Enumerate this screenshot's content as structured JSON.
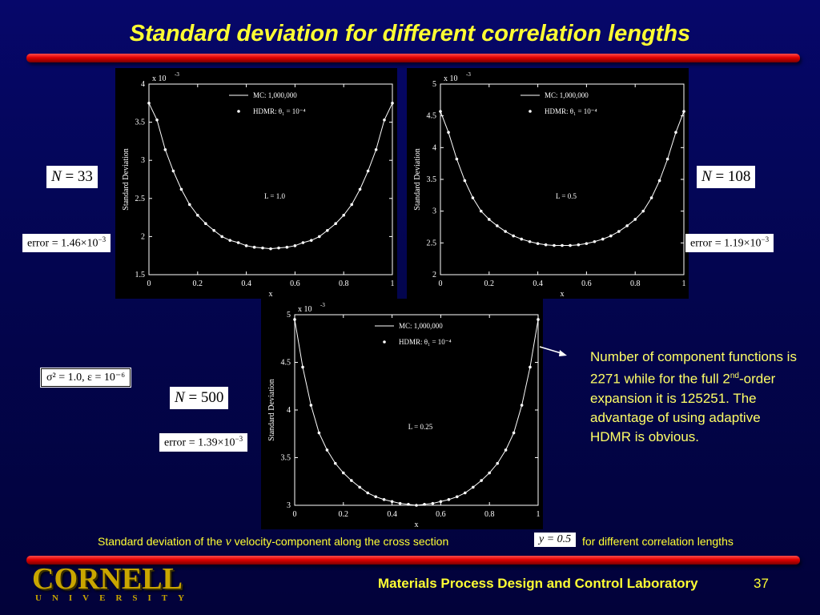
{
  "title": "Standard deviation for different correlation lengths",
  "colors": {
    "title": "#ffff33",
    "bar": "#e00000",
    "text": "#ffff66"
  },
  "left_info": {
    "n": "33",
    "error_mantissa": "1.46",
    "error_exp": "−3"
  },
  "right_info": {
    "n": "108",
    "error_mantissa": "1.19",
    "error_exp": "−3"
  },
  "center_info": {
    "n": "500",
    "error_mantissa": "1.39",
    "error_exp": "−3",
    "params": "σ² = 1.0, ε = 10⁻⁶"
  },
  "sidenote": {
    "line1": "Number of component functions is 2271 while for the full  2",
    "sup": "nd",
    "line2": "-order expansion it is 125251. The advantage of using adaptive HDMR is obvious."
  },
  "caption": {
    "part1": "Standard deviation of the",
    "v": "v",
    "part2": "velocity-component along the cross section",
    "eq": "y = 0.5",
    "part3": "for different correlation lengths"
  },
  "logo": {
    "main": "CORNELL",
    "sub": "UNIVERSITY"
  },
  "footer": {
    "lab": "Materials Process Design and Control Laboratory",
    "page": "37"
  },
  "chart_data": [
    {
      "type": "line",
      "annotation": "L = 1.0",
      "xlabel": "x",
      "ylabel": "Standard Deviation",
      "multiplier": "x 10",
      "multiplier_exp": "-3",
      "xlim": [
        0,
        1
      ],
      "ylim": [
        1.5,
        4
      ],
      "xticks": [
        "0",
        "0.2",
        "0.4",
        "0.6",
        "0.8",
        "1"
      ],
      "yticks": [
        "1.5",
        "2",
        "2.5",
        "3",
        "3.5",
        "4"
      ],
      "legend": [
        "MC: 1,000,000",
        "HDMR: θ₁ = 10⁻⁴"
      ],
      "x": [
        0,
        0.033,
        0.067,
        0.1,
        0.133,
        0.167,
        0.2,
        0.233,
        0.267,
        0.3,
        0.333,
        0.367,
        0.4,
        0.433,
        0.467,
        0.5,
        0.533,
        0.567,
        0.6,
        0.633,
        0.667,
        0.7,
        0.733,
        0.767,
        0.8,
        0.833,
        0.867,
        0.9,
        0.933,
        0.967,
        1
      ],
      "series": [
        {
          "name": "MC: 1,000,000",
          "values": [
            3.75,
            3.53,
            3.14,
            2.86,
            2.62,
            2.42,
            2.28,
            2.17,
            2.08,
            2.0,
            1.95,
            1.92,
            1.88,
            1.86,
            1.85,
            1.84,
            1.85,
            1.86,
            1.88,
            1.92,
            1.95,
            2.0,
            2.08,
            2.17,
            2.28,
            2.42,
            2.62,
            2.86,
            3.14,
            3.53,
            3.75
          ]
        },
        {
          "name": "HDMR: θ₁ = 10⁻⁴",
          "values": [
            3.75,
            3.53,
            3.14,
            2.86,
            2.62,
            2.42,
            2.28,
            2.17,
            2.08,
            2.0,
            1.95,
            1.92,
            1.88,
            1.86,
            1.85,
            1.84,
            1.85,
            1.86,
            1.88,
            1.92,
            1.95,
            2.0,
            2.08,
            2.17,
            2.28,
            2.42,
            2.62,
            2.86,
            3.14,
            3.53,
            3.75
          ]
        }
      ]
    },
    {
      "type": "line",
      "annotation": "L = 0.5",
      "xlabel": "x",
      "ylabel": "Standard Deviation",
      "multiplier": "x 10",
      "multiplier_exp": "-3",
      "xlim": [
        0,
        1
      ],
      "ylim": [
        2,
        5
      ],
      "xticks": [
        "0",
        "0.2",
        "0.4",
        "0.6",
        "0.8",
        "1"
      ],
      "yticks": [
        "2",
        "2.5",
        "3",
        "3.5",
        "4",
        "4.5",
        "5"
      ],
      "legend": [
        "MC: 1,000,000",
        "HDMR: θ₁ = 10⁻⁴"
      ],
      "x": [
        0,
        0.033,
        0.067,
        0.1,
        0.133,
        0.167,
        0.2,
        0.233,
        0.267,
        0.3,
        0.333,
        0.367,
        0.4,
        0.433,
        0.467,
        0.5,
        0.533,
        0.567,
        0.6,
        0.633,
        0.667,
        0.7,
        0.733,
        0.767,
        0.8,
        0.833,
        0.867,
        0.9,
        0.933,
        0.967,
        1
      ],
      "series": [
        {
          "name": "MC: 1,000,000",
          "values": [
            4.57,
            4.24,
            3.82,
            3.48,
            3.21,
            3.0,
            2.87,
            2.77,
            2.68,
            2.61,
            2.56,
            2.52,
            2.49,
            2.47,
            2.46,
            2.46,
            2.46,
            2.47,
            2.49,
            2.52,
            2.56,
            2.61,
            2.68,
            2.77,
            2.87,
            3.0,
            3.21,
            3.48,
            3.82,
            4.24,
            4.57
          ]
        },
        {
          "name": "HDMR: θ₁ = 10⁻⁴",
          "values": [
            4.57,
            4.24,
            3.82,
            3.48,
            3.21,
            3.0,
            2.87,
            2.77,
            2.68,
            2.61,
            2.56,
            2.52,
            2.49,
            2.47,
            2.46,
            2.46,
            2.46,
            2.47,
            2.49,
            2.52,
            2.56,
            2.61,
            2.68,
            2.77,
            2.87,
            3.0,
            3.21,
            3.48,
            3.82,
            4.24,
            4.57
          ]
        }
      ]
    },
    {
      "type": "line",
      "annotation": "L = 0.25",
      "xlabel": "x",
      "ylabel": "Standard Deviation",
      "multiplier": "x 10",
      "multiplier_exp": "-3",
      "xlim": [
        0,
        1
      ],
      "ylim": [
        3,
        5
      ],
      "xticks": [
        "0",
        "0.2",
        "0.4",
        "0.6",
        "0.8",
        "1"
      ],
      "yticks": [
        "3",
        "3.5",
        "4",
        "4.5",
        "5"
      ],
      "legend": [
        "MC: 1,000,000",
        "HDMR: θ₁ = 10⁻⁴"
      ],
      "x": [
        0,
        0.033,
        0.067,
        0.1,
        0.133,
        0.167,
        0.2,
        0.233,
        0.267,
        0.3,
        0.333,
        0.367,
        0.4,
        0.433,
        0.467,
        0.5,
        0.533,
        0.567,
        0.6,
        0.633,
        0.667,
        0.7,
        0.733,
        0.767,
        0.8,
        0.833,
        0.867,
        0.9,
        0.933,
        0.967,
        1
      ],
      "series": [
        {
          "name": "MC: 1,000,000",
          "values": [
            4.95,
            4.45,
            4.05,
            3.76,
            3.58,
            3.44,
            3.34,
            3.26,
            3.19,
            3.13,
            3.09,
            3.06,
            3.04,
            3.02,
            3.01,
            3.0,
            3.01,
            3.02,
            3.04,
            3.06,
            3.09,
            3.13,
            3.19,
            3.26,
            3.34,
            3.44,
            3.58,
            3.76,
            4.05,
            4.45,
            4.95
          ]
        },
        {
          "name": "HDMR: θ₁ = 10⁻⁴",
          "values": [
            4.95,
            4.45,
            4.05,
            3.76,
            3.58,
            3.44,
            3.34,
            3.26,
            3.19,
            3.13,
            3.09,
            3.06,
            3.04,
            3.02,
            3.01,
            3.0,
            3.01,
            3.02,
            3.04,
            3.06,
            3.09,
            3.13,
            3.19,
            3.26,
            3.34,
            3.44,
            3.58,
            3.76,
            4.05,
            4.45,
            4.95
          ]
        }
      ]
    }
  ]
}
